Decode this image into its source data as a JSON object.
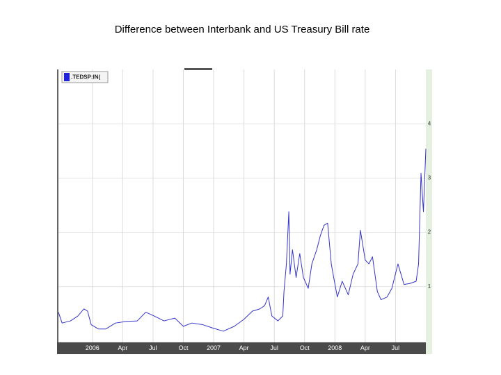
{
  "chart_data": {
    "type": "line",
    "title": "Difference between Interbank and US Treasury Bill rate",
    "x": [
      2005.72,
      2005.75,
      2005.82,
      2005.88,
      2005.93,
      2005.96,
      2005.99,
      2006.05,
      2006.11,
      2006.19,
      2006.28,
      2006.37,
      2006.44,
      2006.51,
      2006.59,
      2006.68,
      2006.75,
      2006.82,
      2006.91,
      2006.99,
      2007.08,
      2007.17,
      2007.25,
      2007.32,
      2007.38,
      2007.42,
      2007.45,
      2007.48,
      2007.53,
      2007.57,
      2007.58,
      2007.6,
      2007.62,
      2007.63,
      2007.65,
      2007.68,
      2007.71,
      2007.74,
      2007.78,
      2007.81,
      2007.85,
      2007.88,
      2007.91,
      2007.94,
      2007.97,
      2007.99,
      2008.02,
      2008.06,
      2008.11,
      2008.15,
      2008.19,
      2008.21,
      2008.25,
      2008.28,
      2008.31,
      2008.35,
      2008.38,
      2008.43,
      2008.47,
      2008.52,
      2008.57,
      2008.62,
      2008.67,
      2008.69,
      2008.71,
      2008.73,
      2008.74,
      2008.75
    ],
    "series": [
      {
        "name": ".TEDSP:IN(",
        "color": "#3333cc",
        "values": [
          0.53,
          0.33,
          0.37,
          0.46,
          0.59,
          0.55,
          0.3,
          0.22,
          0.22,
          0.33,
          0.36,
          0.37,
          0.53,
          0.46,
          0.37,
          0.42,
          0.27,
          0.33,
          0.3,
          0.24,
          0.18,
          0.27,
          0.4,
          0.55,
          0.59,
          0.65,
          0.81,
          0.46,
          0.37,
          0.46,
          0.91,
          1.42,
          2.38,
          1.23,
          1.68,
          1.17,
          1.61,
          1.17,
          0.97,
          1.42,
          1.68,
          1.94,
          2.13,
          2.17,
          1.42,
          1.17,
          0.81,
          1.1,
          0.85,
          1.23,
          1.42,
          2.04,
          1.49,
          1.42,
          1.55,
          0.91,
          0.76,
          0.81,
          0.97,
          1.42,
          1.04,
          1.06,
          1.1,
          1.42,
          3.09,
          2.38,
          2.96,
          3.54
        ]
      }
    ],
    "xlim": [
      2005.72,
      2008.75
    ],
    "xticks": [
      {
        "value": 2006,
        "label": "2006"
      },
      {
        "value": 2006.25,
        "label": "Apr"
      },
      {
        "value": 2006.5,
        "label": "Jul"
      },
      {
        "value": 2006.75,
        "label": "Oct"
      },
      {
        "value": 2007,
        "label": "2007"
      },
      {
        "value": 2007.25,
        "label": "Apr"
      },
      {
        "value": 2007.5,
        "label": "Jul"
      },
      {
        "value": 2007.75,
        "label": "Oct"
      },
      {
        "value": 2008,
        "label": "2008"
      },
      {
        "value": 2008.25,
        "label": "Apr"
      },
      {
        "value": 2008.5,
        "label": "Jul"
      }
    ],
    "ylim": [
      0,
      5
    ],
    "yticks": [
      1,
      2,
      3,
      4
    ],
    "grid": true
  }
}
